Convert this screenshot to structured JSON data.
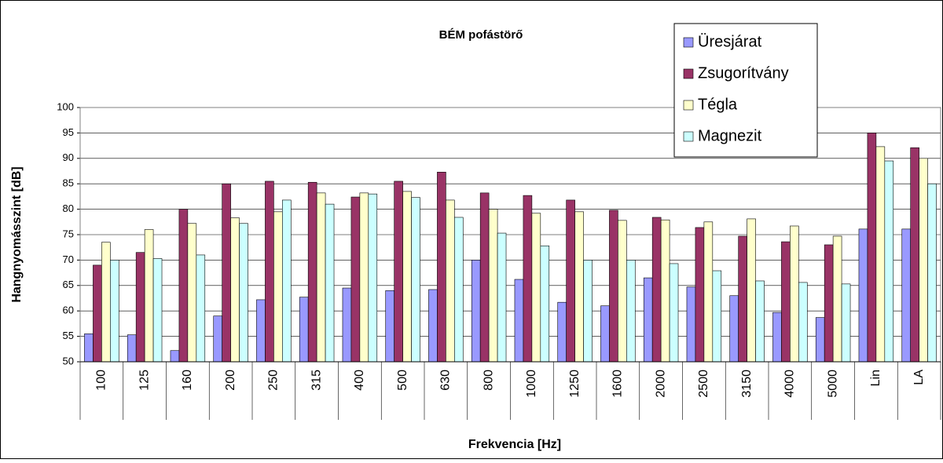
{
  "chart_data": {
    "type": "bar",
    "title": "BÉM pofástörő",
    "x_label": "Frekvencia [Hz]",
    "y_label": "Hangnyomásszint [dB]",
    "categories": [
      "100",
      "125",
      "160",
      "200",
      "250",
      "315",
      "400",
      "500",
      "630",
      "800",
      "1000",
      "1250",
      "1600",
      "2000",
      "2500",
      "3150",
      "4000",
      "5000",
      "Lin",
      "LA"
    ],
    "series": [
      {
        "name": "Üresjárat",
        "color": "#9999ff",
        "values": [
          55.5,
          55.3,
          52.2,
          59,
          62.2,
          62.7,
          64.5,
          64,
          64.2,
          70,
          66.2,
          61.7,
          61,
          66.5,
          64.7,
          63,
          59.7,
          58.7,
          76.1,
          76.1
        ]
      },
      {
        "name": "Zsugorítvány",
        "color": "#993366",
        "values": [
          69,
          71.5,
          80,
          85,
          85.5,
          85.3,
          82.4,
          85.5,
          87.3,
          83.2,
          82.7,
          81.8,
          79.8,
          78.4,
          76.4,
          74.7,
          73.6,
          73,
          95,
          92.1
        ]
      },
      {
        "name": "Tégla",
        "color": "#ffffcc",
        "values": [
          73.5,
          76,
          77.2,
          78.3,
          79.5,
          83.2,
          83.2,
          83.5,
          81.8,
          80,
          79.2,
          79.5,
          77.8,
          77.9,
          77.5,
          78.1,
          76.7,
          74.7,
          92.3,
          90
        ]
      },
      {
        "name": "Magnezit",
        "color": "#ccffff",
        "values": [
          70,
          70.3,
          71,
          77.2,
          81.8,
          81,
          83,
          82.3,
          78.4,
          75.3,
          72.8,
          70,
          70,
          69.3,
          67.9,
          65.9,
          65.6,
          65.3,
          89.5,
          85
        ]
      }
    ],
    "ylim": [
      50,
      100
    ],
    "yticks": [
      50,
      55,
      60,
      65,
      70,
      75,
      80,
      85,
      90,
      95,
      100
    ],
    "grid": true,
    "legend": "top-right"
  }
}
